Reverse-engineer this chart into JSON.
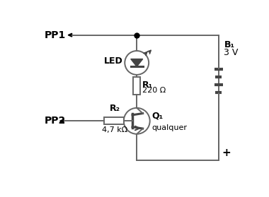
{
  "background_color": "#ffffff",
  "line_color": "#666666",
  "fill_color": "#444444",
  "labels": {
    "PP1": "PP1",
    "PP2": "PP2",
    "LED": "LED",
    "R1": "R₁",
    "R1_val": "220 Ω",
    "R2": "R₂",
    "R2_val": "4,7 kΩ",
    "Q1": "Q₁",
    "Q1_val": "qualquer",
    "B1": "B₁",
    "B1_val": "3 V",
    "plus": "+"
  }
}
